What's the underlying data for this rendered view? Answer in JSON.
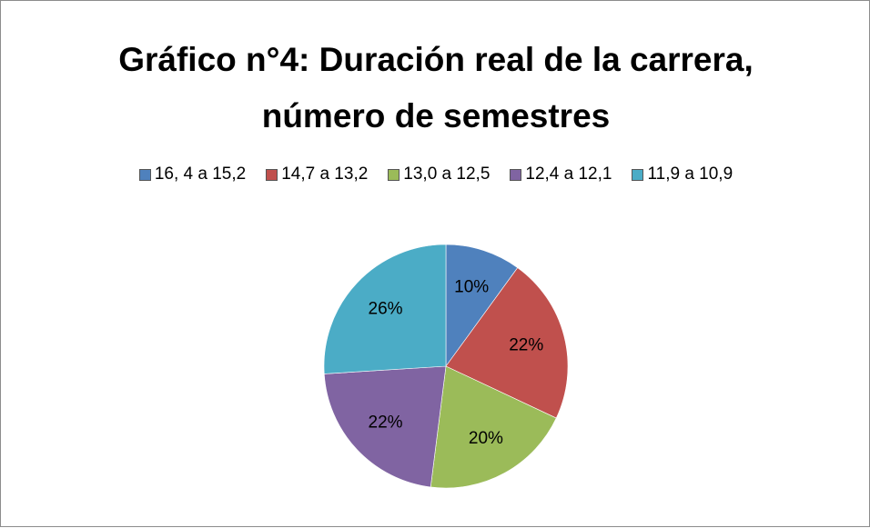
{
  "chart_data": {
    "type": "pie",
    "title": "Gráfico n°4: Duración real de la carrera, número de semestres",
    "categories": [
      "16, 4 a 15,2",
      "14,7 a 13,2",
      "13,0 a 12,5",
      "12,4 a 12,1",
      "11,9 a 10,9"
    ],
    "values": [
      10,
      22,
      20,
      22,
      26
    ],
    "value_labels": [
      "10%",
      "22%",
      "20%",
      "22%",
      "26%"
    ],
    "colors": [
      "#4f81bd",
      "#c0504d",
      "#9bbb59",
      "#8064a2",
      "#4bacc6"
    ],
    "legend": "top"
  }
}
